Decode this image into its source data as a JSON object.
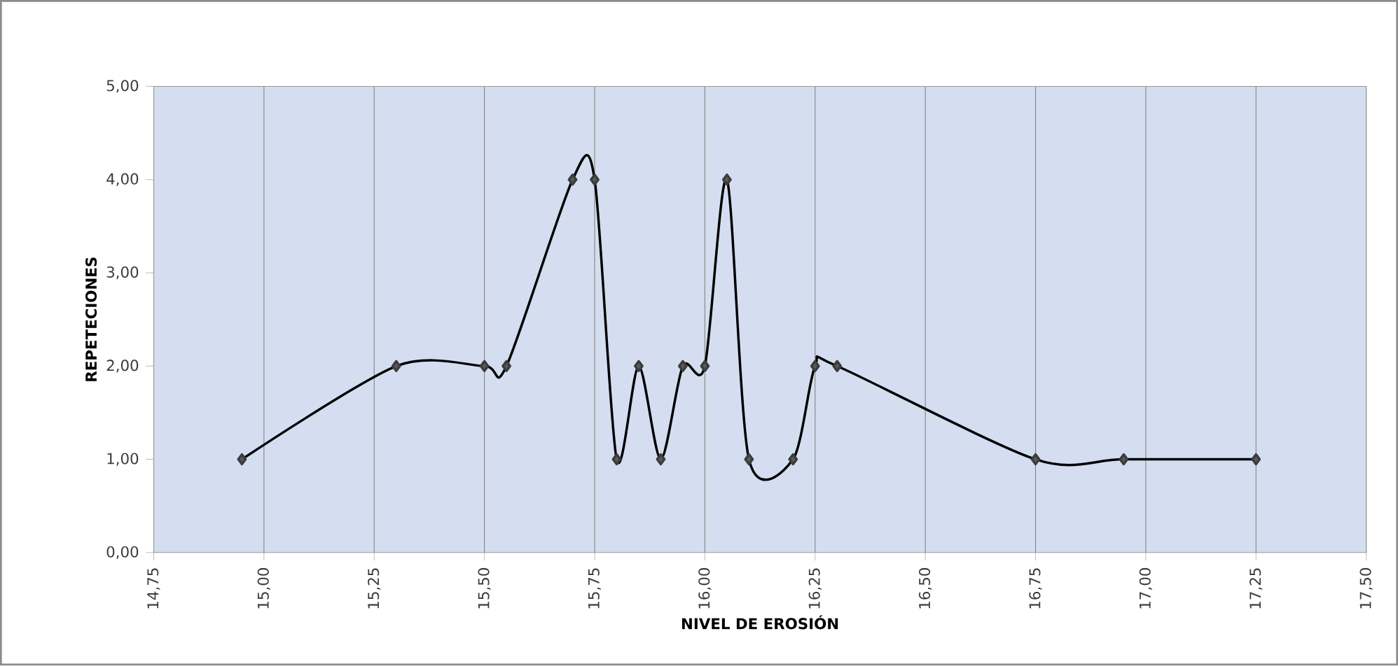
{
  "chart_data": {
    "type": "line",
    "xlabel": "NIVEL DE EROSIÓN",
    "ylabel": "REPETECIONES",
    "x": [
      14.95,
      15.3,
      15.5,
      15.55,
      15.7,
      15.75,
      15.8,
      15.85,
      15.9,
      15.95,
      16.0,
      16.05,
      16.1,
      16.2,
      16.25,
      16.3,
      16.75,
      16.95,
      17.25
    ],
    "series": [
      {
        "color": "#000000",
        "values": [
          1,
          2,
          2,
          2,
          4,
          4,
          1,
          2,
          1,
          2,
          2,
          4,
          1,
          1,
          2,
          2,
          1,
          1,
          1
        ]
      }
    ],
    "xlim": [
      14.75,
      17.5
    ],
    "xticks": [
      {
        "value": 14.75,
        "label": "14,75"
      },
      {
        "value": 15.0,
        "label": "15,00"
      },
      {
        "value": 15.25,
        "label": "15,25"
      },
      {
        "value": 15.5,
        "label": "15,50"
      },
      {
        "value": 15.75,
        "label": "15,75"
      },
      {
        "value": 16.0,
        "label": "16,00"
      },
      {
        "value": 16.25,
        "label": "16,25"
      },
      {
        "value": 16.5,
        "label": "16,50"
      },
      {
        "value": 16.75,
        "label": "16,75"
      },
      {
        "value": 17.0,
        "label": "17,00"
      },
      {
        "value": 17.25,
        "label": "17,25"
      },
      {
        "value": 17.5,
        "label": "17,50"
      }
    ],
    "ylim": [
      0,
      5
    ],
    "yticks": [
      {
        "value": 0,
        "label": "0,00"
      },
      {
        "value": 1,
        "label": "1,00"
      },
      {
        "value": 2,
        "label": "2,00"
      },
      {
        "value": 3,
        "label": "3,00"
      },
      {
        "value": 4,
        "label": "4,00"
      },
      {
        "value": 5,
        "label": "5,00"
      }
    ],
    "grid": "x",
    "marker": "diamond",
    "line_style": "solid"
  }
}
